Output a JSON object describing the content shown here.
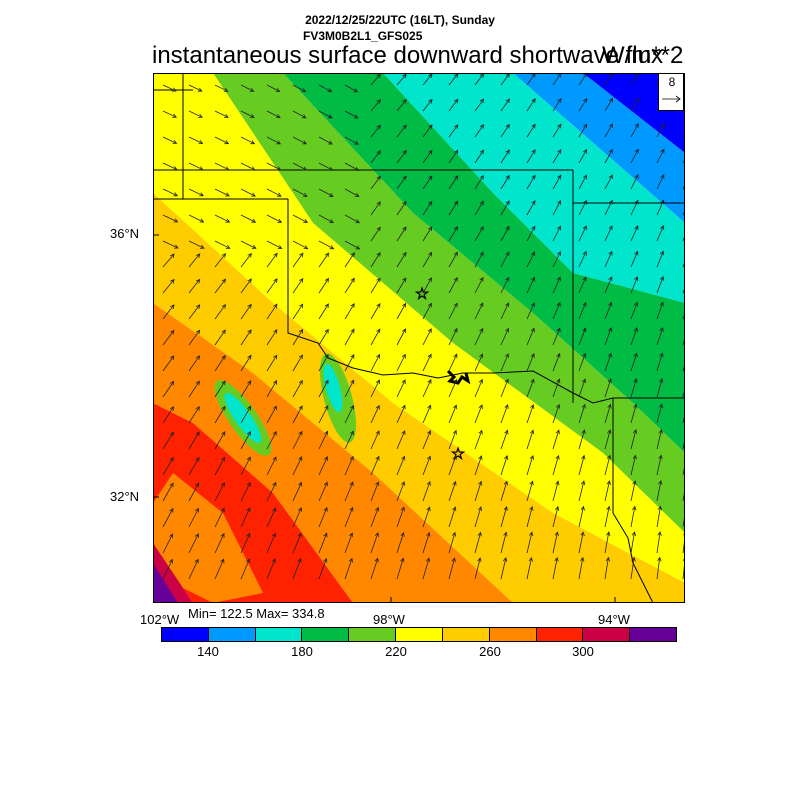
{
  "header": {
    "line1": "2022/12/25/22UTC (16LT), Sunday",
    "line2": "FV3M0B2L1_GFS025",
    "title": "instantaneous surface downward shortwave flux",
    "units": "W/m**2"
  },
  "reference_vector": {
    "value": "8"
  },
  "axes": {
    "lat_labels": [
      "36°N",
      "32°N"
    ],
    "lon_labels": [
      "102°W",
      "98°W",
      "94°W"
    ]
  },
  "stats": {
    "text": "Min= 122.5 Max= 334.8"
  },
  "colorbar": {
    "colors": [
      "#0000ff",
      "#0099ff",
      "#00e5cc",
      "#00bb44",
      "#66cc22",
      "#ffff00",
      "#ffcc00",
      "#ff8800",
      "#ff2200",
      "#cc0044",
      "#660099"
    ],
    "labels": [
      "140",
      "180",
      "220",
      "260",
      "300"
    ]
  },
  "map": {
    "field_colors": [
      "#0000ff",
      "#0099ff",
      "#00e5cc",
      "#00bb44",
      "#66cc22",
      "#ffff00",
      "#ffcc00",
      "#ff8800",
      "#ff2200",
      "#cc0044",
      "#660099"
    ],
    "star_markers": 2
  }
}
